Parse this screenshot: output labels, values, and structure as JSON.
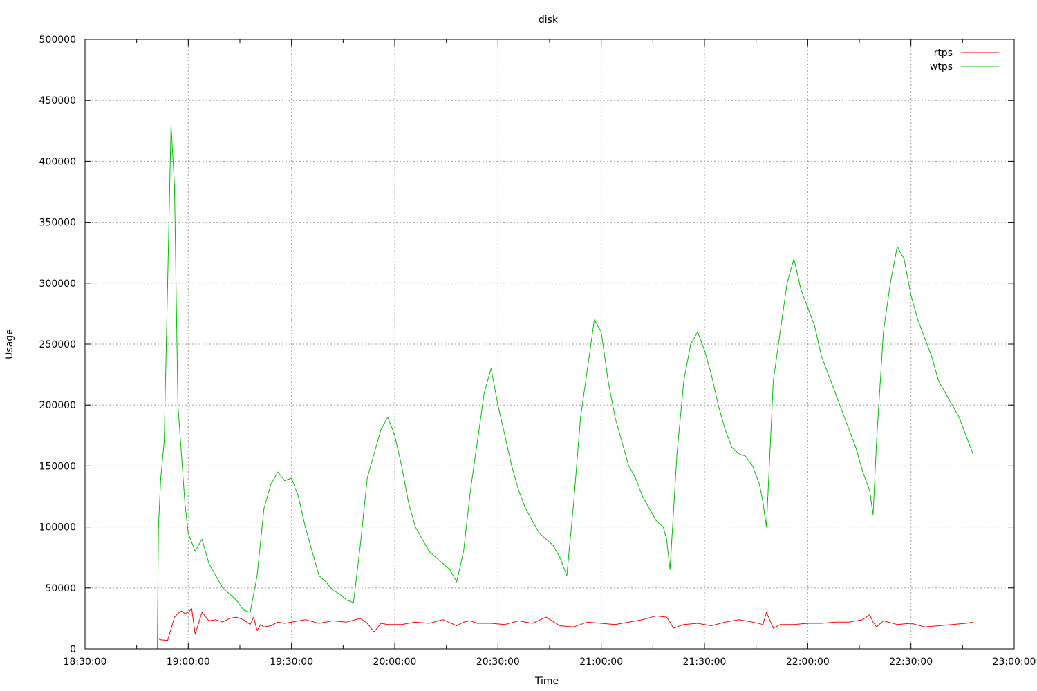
{
  "chart_data": {
    "type": "line",
    "title": "disk",
    "xlabel": "Time",
    "ylabel": "Usage",
    "x_tick_labels": [
      "18:30:00",
      "19:00:00",
      "19:30:00",
      "20:00:00",
      "20:30:00",
      "21:00:00",
      "21:30:00",
      "22:00:00",
      "22:30:00",
      "23:00:00"
    ],
    "y_tick_labels": [
      "0",
      "50000",
      "100000",
      "150000",
      "200000",
      "250000",
      "300000",
      "350000",
      "400000",
      "450000",
      "500000"
    ],
    "xlim": [
      "18:30:00",
      "23:00:00"
    ],
    "ylim": [
      0,
      500000
    ],
    "grid": true,
    "legend_position": "top-right",
    "series": [
      {
        "name": "rtps",
        "color": "#ff0000",
        "x": [
          "18:51:30",
          "18:52:00",
          "18:54:00",
          "18:56:00",
          "18:57:00",
          "18:58:00",
          "18:59:00",
          "19:00:00",
          "19:01:00",
          "19:02:00",
          "19:04:00",
          "19:06:00",
          "19:08:00",
          "19:10:00",
          "19:12:00",
          "19:14:00",
          "19:16:00",
          "19:18:00",
          "19:19:00",
          "19:20:00",
          "19:21:00",
          "19:22:00",
          "19:24:00",
          "19:26:00",
          "19:28:00",
          "19:30:00",
          "19:34:00",
          "19:38:00",
          "19:42:00",
          "19:46:00",
          "19:50:00",
          "19:52:00",
          "19:54:00",
          "19:56:00",
          "19:58:00",
          "20:02:00",
          "20:06:00",
          "20:10:00",
          "20:14:00",
          "20:18:00",
          "20:20:00",
          "20:22:00",
          "20:24:00",
          "20:28:00",
          "20:32:00",
          "20:36:00",
          "20:40:00",
          "20:44:00",
          "20:48:00",
          "20:52:00",
          "20:56:00",
          "21:00:00",
          "21:04:00",
          "21:08:00",
          "21:12:00",
          "21:16:00",
          "21:19:00",
          "21:20:00",
          "21:21:00",
          "21:24:00",
          "21:28:00",
          "21:32:00",
          "21:36:00",
          "21:40:00",
          "21:44:00",
          "21:47:00",
          "21:48:00",
          "21:50:00",
          "21:52:00",
          "21:56:00",
          "22:00:00",
          "22:04:00",
          "22:08:00",
          "22:12:00",
          "22:16:00",
          "22:18:00",
          "22:19:00",
          "22:20:00",
          "22:22:00",
          "22:26:00",
          "22:30:00",
          "22:34:00",
          "22:38:00",
          "22:42:00",
          "22:46:00",
          "22:48:00"
        ],
        "values": [
          8000,
          7500,
          7000,
          26000,
          29000,
          31000,
          29000,
          30000,
          33000,
          12000,
          30000,
          23000,
          24000,
          22000,
          25000,
          26000,
          24000,
          20000,
          26000,
          15000,
          20000,
          18000,
          19000,
          22000,
          21000,
          22000,
          24000,
          21000,
          23000,
          22000,
          25000,
          21000,
          14000,
          21000,
          20000,
          20000,
          22000,
          21000,
          24000,
          19000,
          22000,
          23000,
          21000,
          21000,
          20000,
          23000,
          21000,
          26000,
          19000,
          18000,
          22000,
          21000,
          20000,
          22000,
          24000,
          27000,
          26000,
          22000,
          17000,
          20000,
          21000,
          19000,
          22000,
          24000,
          22000,
          20000,
          30000,
          17000,
          20000,
          20000,
          21000,
          21000,
          22000,
          22000,
          24000,
          28000,
          22000,
          18000,
          23000,
          20000,
          21000,
          18000,
          19000,
          20000,
          21000,
          22000
        ]
      },
      {
        "name": "wtps",
        "color": "#00c000",
        "x": [
          "18:51:00",
          "18:51:20",
          "18:52:00",
          "18:53:00",
          "18:54:00",
          "18:55:00",
          "18:56:00",
          "18:57:00",
          "18:58:00",
          "18:59:00",
          "19:00:00",
          "19:02:00",
          "19:04:00",
          "19:06:00",
          "19:08:00",
          "19:10:00",
          "19:12:00",
          "19:14:00",
          "19:16:00",
          "19:18:00",
          "19:20:00",
          "19:22:00",
          "19:24:00",
          "19:26:00",
          "19:28:00",
          "19:30:00",
          "19:32:00",
          "19:34:00",
          "19:36:00",
          "19:38:00",
          "19:40:00",
          "19:42:00",
          "19:44:00",
          "19:46:00",
          "19:48:00",
          "19:50:00",
          "19:52:00",
          "19:54:00",
          "19:56:00",
          "19:58:00",
          "20:00:00",
          "20:02:00",
          "20:04:00",
          "20:06:00",
          "20:08:00",
          "20:10:00",
          "20:12:00",
          "20:14:00",
          "20:16:00",
          "20:18:00",
          "20:20:00",
          "20:22:00",
          "20:24:00",
          "20:26:00",
          "20:28:00",
          "20:30:00",
          "20:32:00",
          "20:34:00",
          "20:36:00",
          "20:38:00",
          "20:40:00",
          "20:42:00",
          "20:44:00",
          "20:46:00",
          "20:48:00",
          "20:50:00",
          "20:52:00",
          "20:54:00",
          "20:56:00",
          "20:58:00",
          "21:00:00",
          "21:02:00",
          "21:04:00",
          "21:06:00",
          "21:08:00",
          "21:10:00",
          "21:12:00",
          "21:14:00",
          "21:16:00",
          "21:18:00",
          "21:19:00",
          "21:20:00",
          "21:22:00",
          "21:24:00",
          "21:26:00",
          "21:28:00",
          "21:30:00",
          "21:32:00",
          "21:34:00",
          "21:36:00",
          "21:38:00",
          "21:40:00",
          "21:42:00",
          "21:44:00",
          "21:46:00",
          "21:47:00",
          "21:48:00",
          "21:50:00",
          "21:52:00",
          "21:54:00",
          "21:56:00",
          "21:58:00",
          "22:00:00",
          "22:02:00",
          "22:04:00",
          "22:06:00",
          "22:08:00",
          "22:10:00",
          "22:12:00",
          "22:14:00",
          "22:16:00",
          "22:18:00",
          "22:19:00",
          "22:20:00",
          "22:22:00",
          "22:24:00",
          "22:26:00",
          "22:28:00",
          "22:30:00",
          "22:32:00",
          "22:34:00",
          "22:36:00",
          "22:38:00",
          "22:40:00",
          "22:42:00",
          "22:44:00",
          "22:46:00",
          "22:48:00"
        ],
        "values": [
          0,
          100000,
          140000,
          170000,
          300000,
          430000,
          380000,
          200000,
          160000,
          120000,
          95000,
          80000,
          90000,
          70000,
          60000,
          50000,
          45000,
          40000,
          32000,
          30000,
          60000,
          115000,
          135000,
          145000,
          138000,
          140000,
          125000,
          100000,
          80000,
          60000,
          55000,
          48000,
          45000,
          40000,
          38000,
          85000,
          140000,
          160000,
          180000,
          190000,
          175000,
          150000,
          120000,
          100000,
          90000,
          80000,
          75000,
          70000,
          65000,
          55000,
          80000,
          130000,
          170000,
          210000,
          230000,
          200000,
          175000,
          150000,
          130000,
          115000,
          105000,
          95000,
          90000,
          85000,
          75000,
          60000,
          120000,
          190000,
          230000,
          270000,
          260000,
          220000,
          190000,
          170000,
          150000,
          140000,
          125000,
          115000,
          105000,
          100000,
          90000,
          65000,
          160000,
          220000,
          250000,
          260000,
          245000,
          225000,
          200000,
          180000,
          165000,
          160000,
          158000,
          150000,
          135000,
          120000,
          100000,
          220000,
          260000,
          300000,
          320000,
          295000,
          280000,
          265000,
          240000,
          225000,
          210000,
          195000,
          180000,
          165000,
          145000,
          130000,
          110000,
          170000,
          260000,
          300000,
          330000,
          320000,
          290000,
          270000,
          255000,
          240000,
          220000,
          210000,
          200000,
          190000,
          175000,
          160000
        ]
      }
    ]
  }
}
